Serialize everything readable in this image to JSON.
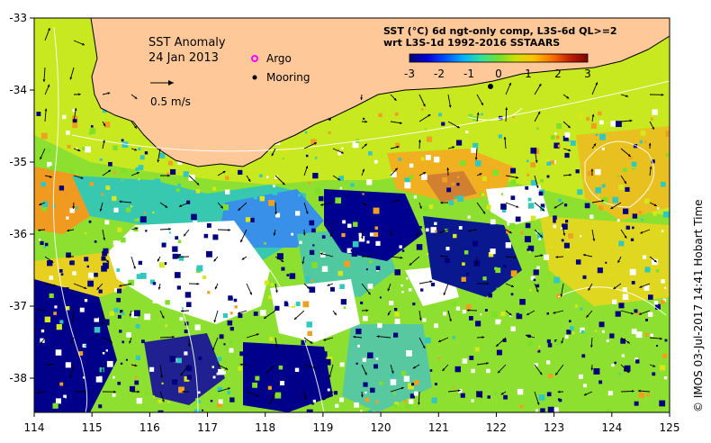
{
  "map": {
    "title": "SST Anomaly",
    "date": "24 Jan 2013",
    "legend": {
      "argo_label": "Argo",
      "mooring_label": "Mooring",
      "scale_label": "0.5 m/s"
    },
    "colorbar": {
      "line1": "SST (°C) 6d ngt-only comp, L3S-6d QL>=2",
      "line2": "wrt L3S-1d 1992-2016 SSTAARS",
      "ticks": [
        "-3",
        "-2",
        "-1",
        "0",
        "1",
        "2",
        "3"
      ],
      "colors": [
        "#00007a",
        "#0000d8",
        "#0050ff",
        "#00b0ff",
        "#30e0a0",
        "#70e030",
        "#d0e000",
        "#ffc000",
        "#ff7000",
        "#c02000",
        "#800000"
      ]
    },
    "credit": "© IMOS 03-Jul-2017 14:41 Hobart Time",
    "lon_ticks": [
      "114",
      "115",
      "116",
      "117",
      "118",
      "119",
      "120",
      "121",
      "122",
      "123",
      "124",
      "125"
    ],
    "lat_ticks": [
      "-33",
      "-34",
      "-35",
      "-36",
      "-37",
      "-38"
    ],
    "colors": {
      "land": "#ffc898",
      "ocean_green": "#7ee02a",
      "ocean_yellow": "#d6e81a",
      "ocean_orange": "#f0a020",
      "ocean_cyan": "#30c8c0",
      "ocean_blue": "#2080f0",
      "deep_blue": "#000080",
      "no_data": "#ffffff"
    }
  }
}
